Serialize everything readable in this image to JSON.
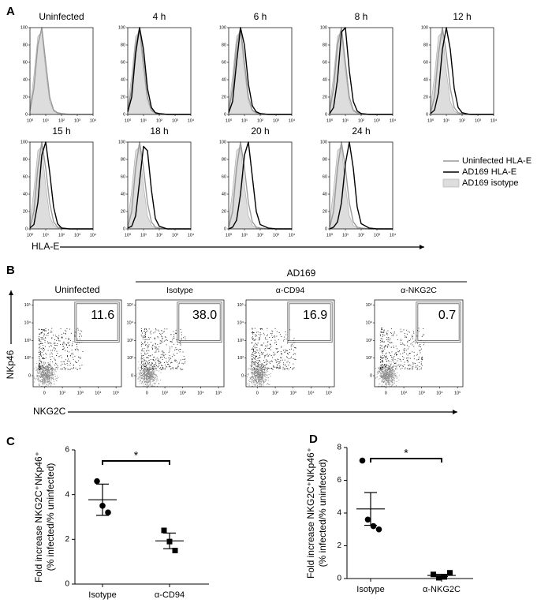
{
  "chart_data": [
    {
      "label": "A",
      "type": "histogram-grid",
      "panels": [
        "Uninfected",
        "4 h",
        "6 h",
        "8 h",
        "12 h",
        "15 h",
        "18 h",
        "20 h",
        "24 h"
      ],
      "x": [
        0,
        0.25,
        0.5,
        0.75,
        1,
        1.25,
        1.5,
        1.75,
        2,
        2.5,
        3,
        4
      ],
      "xlim": [
        0,
        4
      ],
      "xticks": [
        {
          "value": 0,
          "label": "10⁰"
        },
        {
          "value": 1,
          "label": "10¹"
        },
        {
          "value": 2,
          "label": "10²"
        },
        {
          "value": 3,
          "label": "10³"
        },
        {
          "value": 4,
          "label": "10⁴"
        }
      ],
      "ylim": [
        0,
        100
      ],
      "yticks": [
        0,
        20,
        40,
        60,
        80,
        100
      ],
      "xlabel": "HLA-E",
      "series": [
        {
          "name": "Uninfected HLA-E",
          "color": "#999999",
          "values": [
            [
              4,
              30,
              80,
              100,
              60,
              20,
              5,
              2,
              1,
              0,
              0,
              0
            ],
            [
              4,
              30,
              80,
              100,
              60,
              20,
              5,
              2,
              1,
              0,
              0,
              0
            ],
            [
              4,
              30,
              80,
              100,
              60,
              20,
              5,
              2,
              1,
              0,
              0,
              0
            ],
            [
              4,
              30,
              80,
              100,
              60,
              20,
              5,
              2,
              1,
              0,
              0,
              0
            ],
            [
              2,
              20,
              70,
              100,
              70,
              30,
              8,
              2,
              1,
              0,
              0,
              0
            ],
            [
              2,
              20,
              70,
              100,
              70,
              30,
              8,
              2,
              1,
              0,
              0,
              0
            ],
            [
              2,
              20,
              70,
              100,
              70,
              30,
              8,
              2,
              1,
              0,
              0,
              0
            ],
            [
              2,
              20,
              70,
              100,
              70,
              30,
              8,
              2,
              1,
              0,
              0,
              0
            ],
            [
              2,
              20,
              70,
              100,
              70,
              30,
              8,
              2,
              1,
              0,
              0,
              0
            ]
          ]
        },
        {
          "name": "AD169 HLA-E",
          "color": "#000000",
          "values": [
            null,
            [
              3,
              20,
              70,
              100,
              75,
              30,
              8,
              2,
              1,
              0,
              0,
              0
            ],
            [
              2,
              15,
              60,
              100,
              80,
              35,
              10,
              3,
              1,
              0,
              0,
              0
            ],
            [
              1,
              8,
              40,
              95,
              100,
              50,
              15,
              4,
              1,
              0,
              0,
              0
            ],
            [
              1,
              5,
              25,
              75,
              100,
              75,
              30,
              8,
              2,
              0,
              0,
              0
            ],
            [
              1,
              5,
              30,
              85,
              100,
              65,
              25,
              6,
              1,
              0,
              0,
              0
            ],
            [
              1,
              3,
              15,
              55,
              95,
              90,
              45,
              12,
              3,
              0,
              0,
              0
            ],
            [
              0,
              2,
              10,
              40,
              85,
              100,
              60,
              20,
              5,
              1,
              0,
              0
            ],
            [
              0,
              2,
              8,
              30,
              75,
              100,
              70,
              25,
              6,
              1,
              0,
              0
            ]
          ]
        },
        {
          "name": "AD169 isotype",
          "color": "#dddddd",
          "fill": true,
          "values": [
            [
              8,
              45,
              90,
              95,
              50,
              15,
              4,
              1,
              0,
              0,
              0,
              0
            ],
            [
              8,
              45,
              90,
              95,
              50,
              15,
              4,
              1,
              0,
              0,
              0,
              0
            ],
            [
              8,
              45,
              90,
              95,
              50,
              15,
              4,
              1,
              0,
              0,
              0,
              0
            ],
            [
              8,
              45,
              90,
              95,
              50,
              15,
              4,
              1,
              0,
              0,
              0,
              0
            ],
            [
              8,
              45,
              90,
              95,
              50,
              15,
              4,
              1,
              0,
              0,
              0,
              0
            ],
            [
              8,
              45,
              90,
              95,
              50,
              15,
              4,
              1,
              0,
              0,
              0,
              0
            ],
            [
              8,
              45,
              90,
              95,
              50,
              15,
              4,
              1,
              0,
              0,
              0,
              0
            ],
            [
              8,
              45,
              90,
              95,
              50,
              15,
              4,
              1,
              0,
              0,
              0,
              0
            ],
            [
              8,
              45,
              90,
              95,
              50,
              15,
              4,
              1,
              0,
              0,
              0,
              0
            ]
          ]
        }
      ]
    },
    {
      "label": "B",
      "type": "flow-gates",
      "group": "AD169",
      "categories": [
        "Uninfected",
        "Isotype",
        "α-CD94",
        "α-NKG2C"
      ],
      "values": [
        11.6,
        38.0,
        16.9,
        0.7
      ],
      "value_labels": [
        "11.6",
        "38.0",
        "16.9",
        "0.7"
      ],
      "xlabel": "NKG2C",
      "ylabel": "NKp46",
      "xscale": "asinh",
      "yscale": "asinh",
      "xlim": [
        -40,
        200000
      ],
      "ylim": [
        -40,
        200000
      ],
      "xticks": [
        0,
        {
          "value": 100,
          "label": "10²"
        },
        {
          "value": 1000,
          "label": "10³"
        },
        {
          "value": 10000,
          "label": "10⁴"
        },
        {
          "value": 100000,
          "label": "10⁵"
        }
      ],
      "yticks": [
        0,
        {
          "value": 100,
          "label": "10²"
        },
        {
          "value": 1000,
          "label": "10³"
        },
        {
          "value": 10000,
          "label": "10⁴"
        },
        {
          "value": 100000,
          "label": "10⁵"
        }
      ],
      "gate": {
        "x": [
          500,
          150000
        ],
        "y": [
          800,
          150000
        ]
      }
    },
    {
      "label": "C",
      "type": "dot-plot",
      "ylabel": [
        "Fold increase NKG2C⁺NKp46⁺",
        "(% infected/% uninfected)"
      ],
      "categories": [
        "Isotype",
        "α-CD94"
      ],
      "markers": [
        "circle",
        "square"
      ],
      "values": [
        [
          4.6,
          3.5,
          3.2
        ],
        [
          2.4,
          1.9,
          1.5
        ]
      ],
      "means": [
        3.77,
        1.93
      ],
      "errors": [
        0.7,
        0.35
      ],
      "ylim": [
        0,
        6
      ],
      "yticks": [
        0,
        2,
        4,
        6
      ],
      "annotation": "*"
    },
    {
      "label": "D",
      "type": "dot-plot",
      "ylabel": [
        "Fold increase NKG2C⁺NKp46⁺",
        "(% infected/% uninfected)"
      ],
      "categories": [
        "Isotype",
        "α-NKG2C"
      ],
      "markers": [
        "circle",
        "square"
      ],
      "values": [
        [
          7.2,
          3.6,
          3.2,
          3.0
        ],
        [
          0.25,
          0.05,
          0.1,
          0.35
        ]
      ],
      "means": [
        4.25,
        0.19
      ],
      "errors": [
        1.0,
        0.07
      ],
      "ylim": [
        0,
        8
      ],
      "yticks": [
        0,
        2,
        4,
        6,
        8
      ],
      "annotation": "*"
    }
  ]
}
